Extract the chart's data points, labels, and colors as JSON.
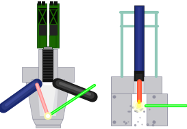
{
  "bg_color": "#ffffff",
  "gray_light": "#c8c8cc",
  "gray_mid": "#9090a0",
  "gray_dark": "#707080",
  "dark_green": "#1a6600",
  "green_bright": "#00ff00",
  "dark_navy": "#1a2870",
  "black": "#101010",
  "salmon": "#ff9090",
  "orange_red": "#ff5030",
  "teal": "#90c8b8",
  "white": "#ffffff",
  "fig_width": 2.73,
  "fig_height": 1.89,
  "dpi": 100
}
